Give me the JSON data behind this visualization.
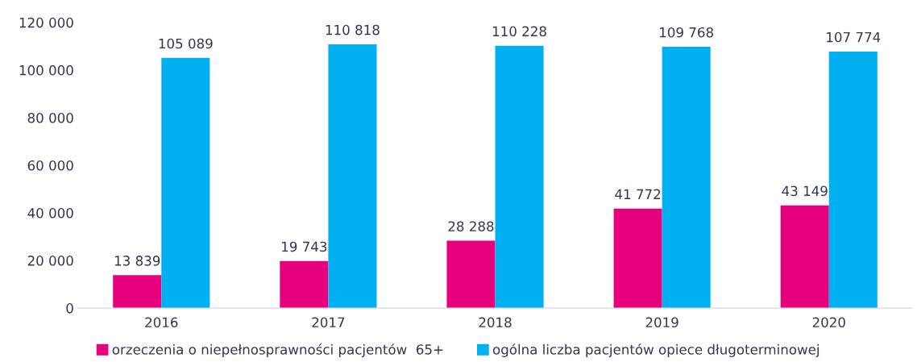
{
  "chart_data": {
    "type": "bar",
    "categories": [
      "2016",
      "2017",
      "2018",
      "2019",
      "2020"
    ],
    "series": [
      {
        "name": "orzeczenia o niepełnosprawności pacjentów  65+",
        "color": "#e6007e",
        "values": [
          13839,
          19743,
          28288,
          41772,
          43149
        ],
        "value_labels": [
          "13 839",
          "19 743",
          "28 288",
          "41 772",
          "43 149"
        ]
      },
      {
        "name": "ogólna liczba pacjentów opiece długoterminowej",
        "color": "#00b0f0",
        "values": [
          105089,
          110818,
          110228,
          109768,
          107774
        ],
        "value_labels": [
          "105 089",
          "110 818",
          "110 228",
          "109 768",
          "107 774"
        ]
      }
    ],
    "ylim": [
      0,
      120000
    ],
    "yticks": [
      {
        "value": 0,
        "label": "0"
      },
      {
        "value": 20000,
        "label": "20 000"
      },
      {
        "value": 40000,
        "label": "40 000"
      },
      {
        "value": 60000,
        "label": "60 000"
      },
      {
        "value": 80000,
        "label": "80 000"
      },
      {
        "value": 100000,
        "label": "100 000"
      },
      {
        "value": 120000,
        "label": "120 000"
      }
    ],
    "grid": false,
    "legend": "bottom"
  }
}
